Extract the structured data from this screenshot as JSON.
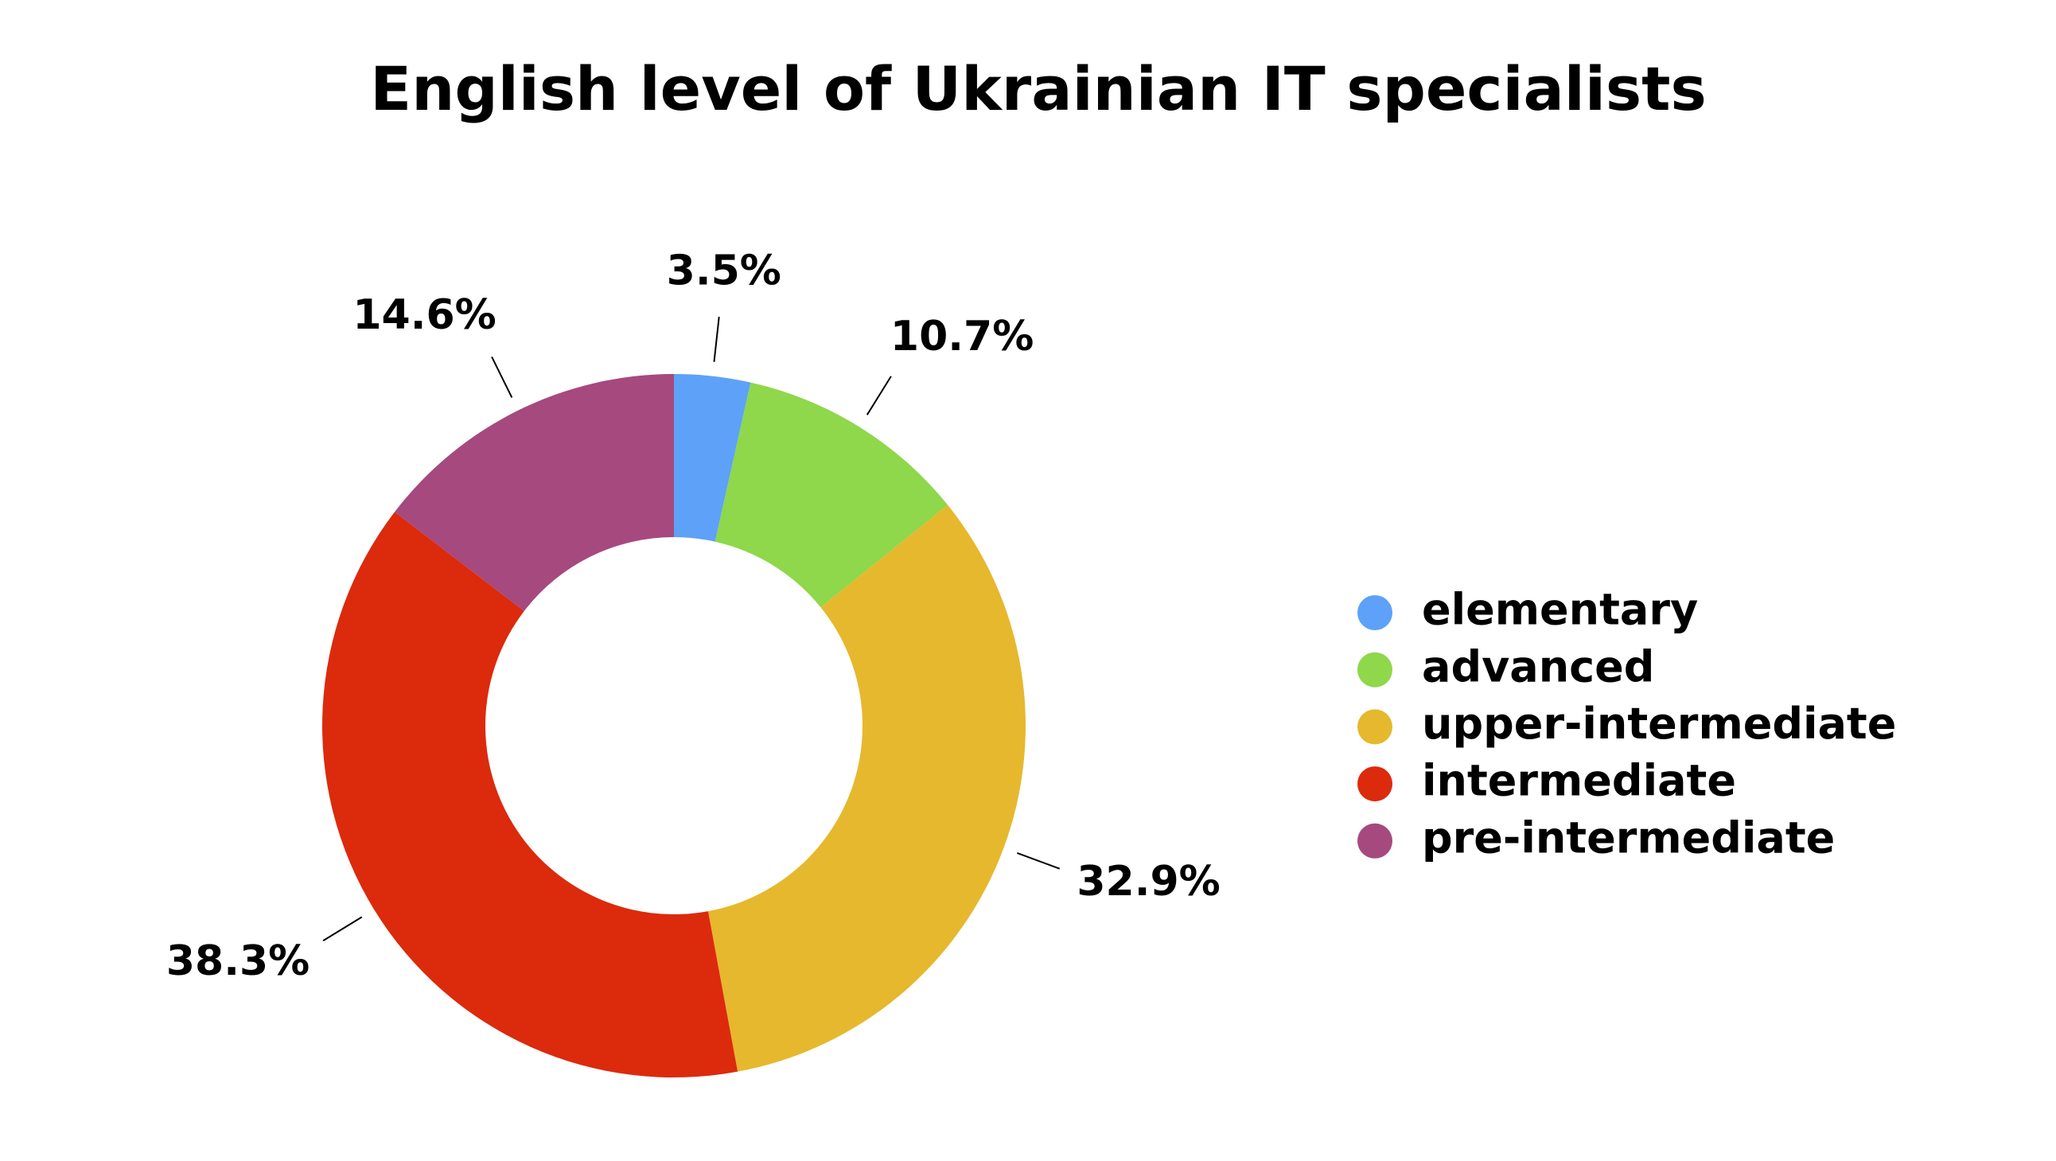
{
  "chart_data": {
    "type": "donut",
    "title": "English level of Ukrainian IT specialists",
    "categories": [
      "elementary",
      "advanced",
      "upper-intermediate",
      "intermediate",
      "pre-intermediate"
    ],
    "values": [
      3.5,
      10.7,
      32.9,
      38.3,
      14.6
    ],
    "value_labels": [
      "3.5%",
      "10.7%",
      "32.9%",
      "38.3%",
      "14.6%"
    ],
    "colors": [
      "#5ea1f8",
      "#8fd74b",
      "#e6b82e",
      "#dc2a0c",
      "#a6497e"
    ],
    "legend": "right"
  }
}
